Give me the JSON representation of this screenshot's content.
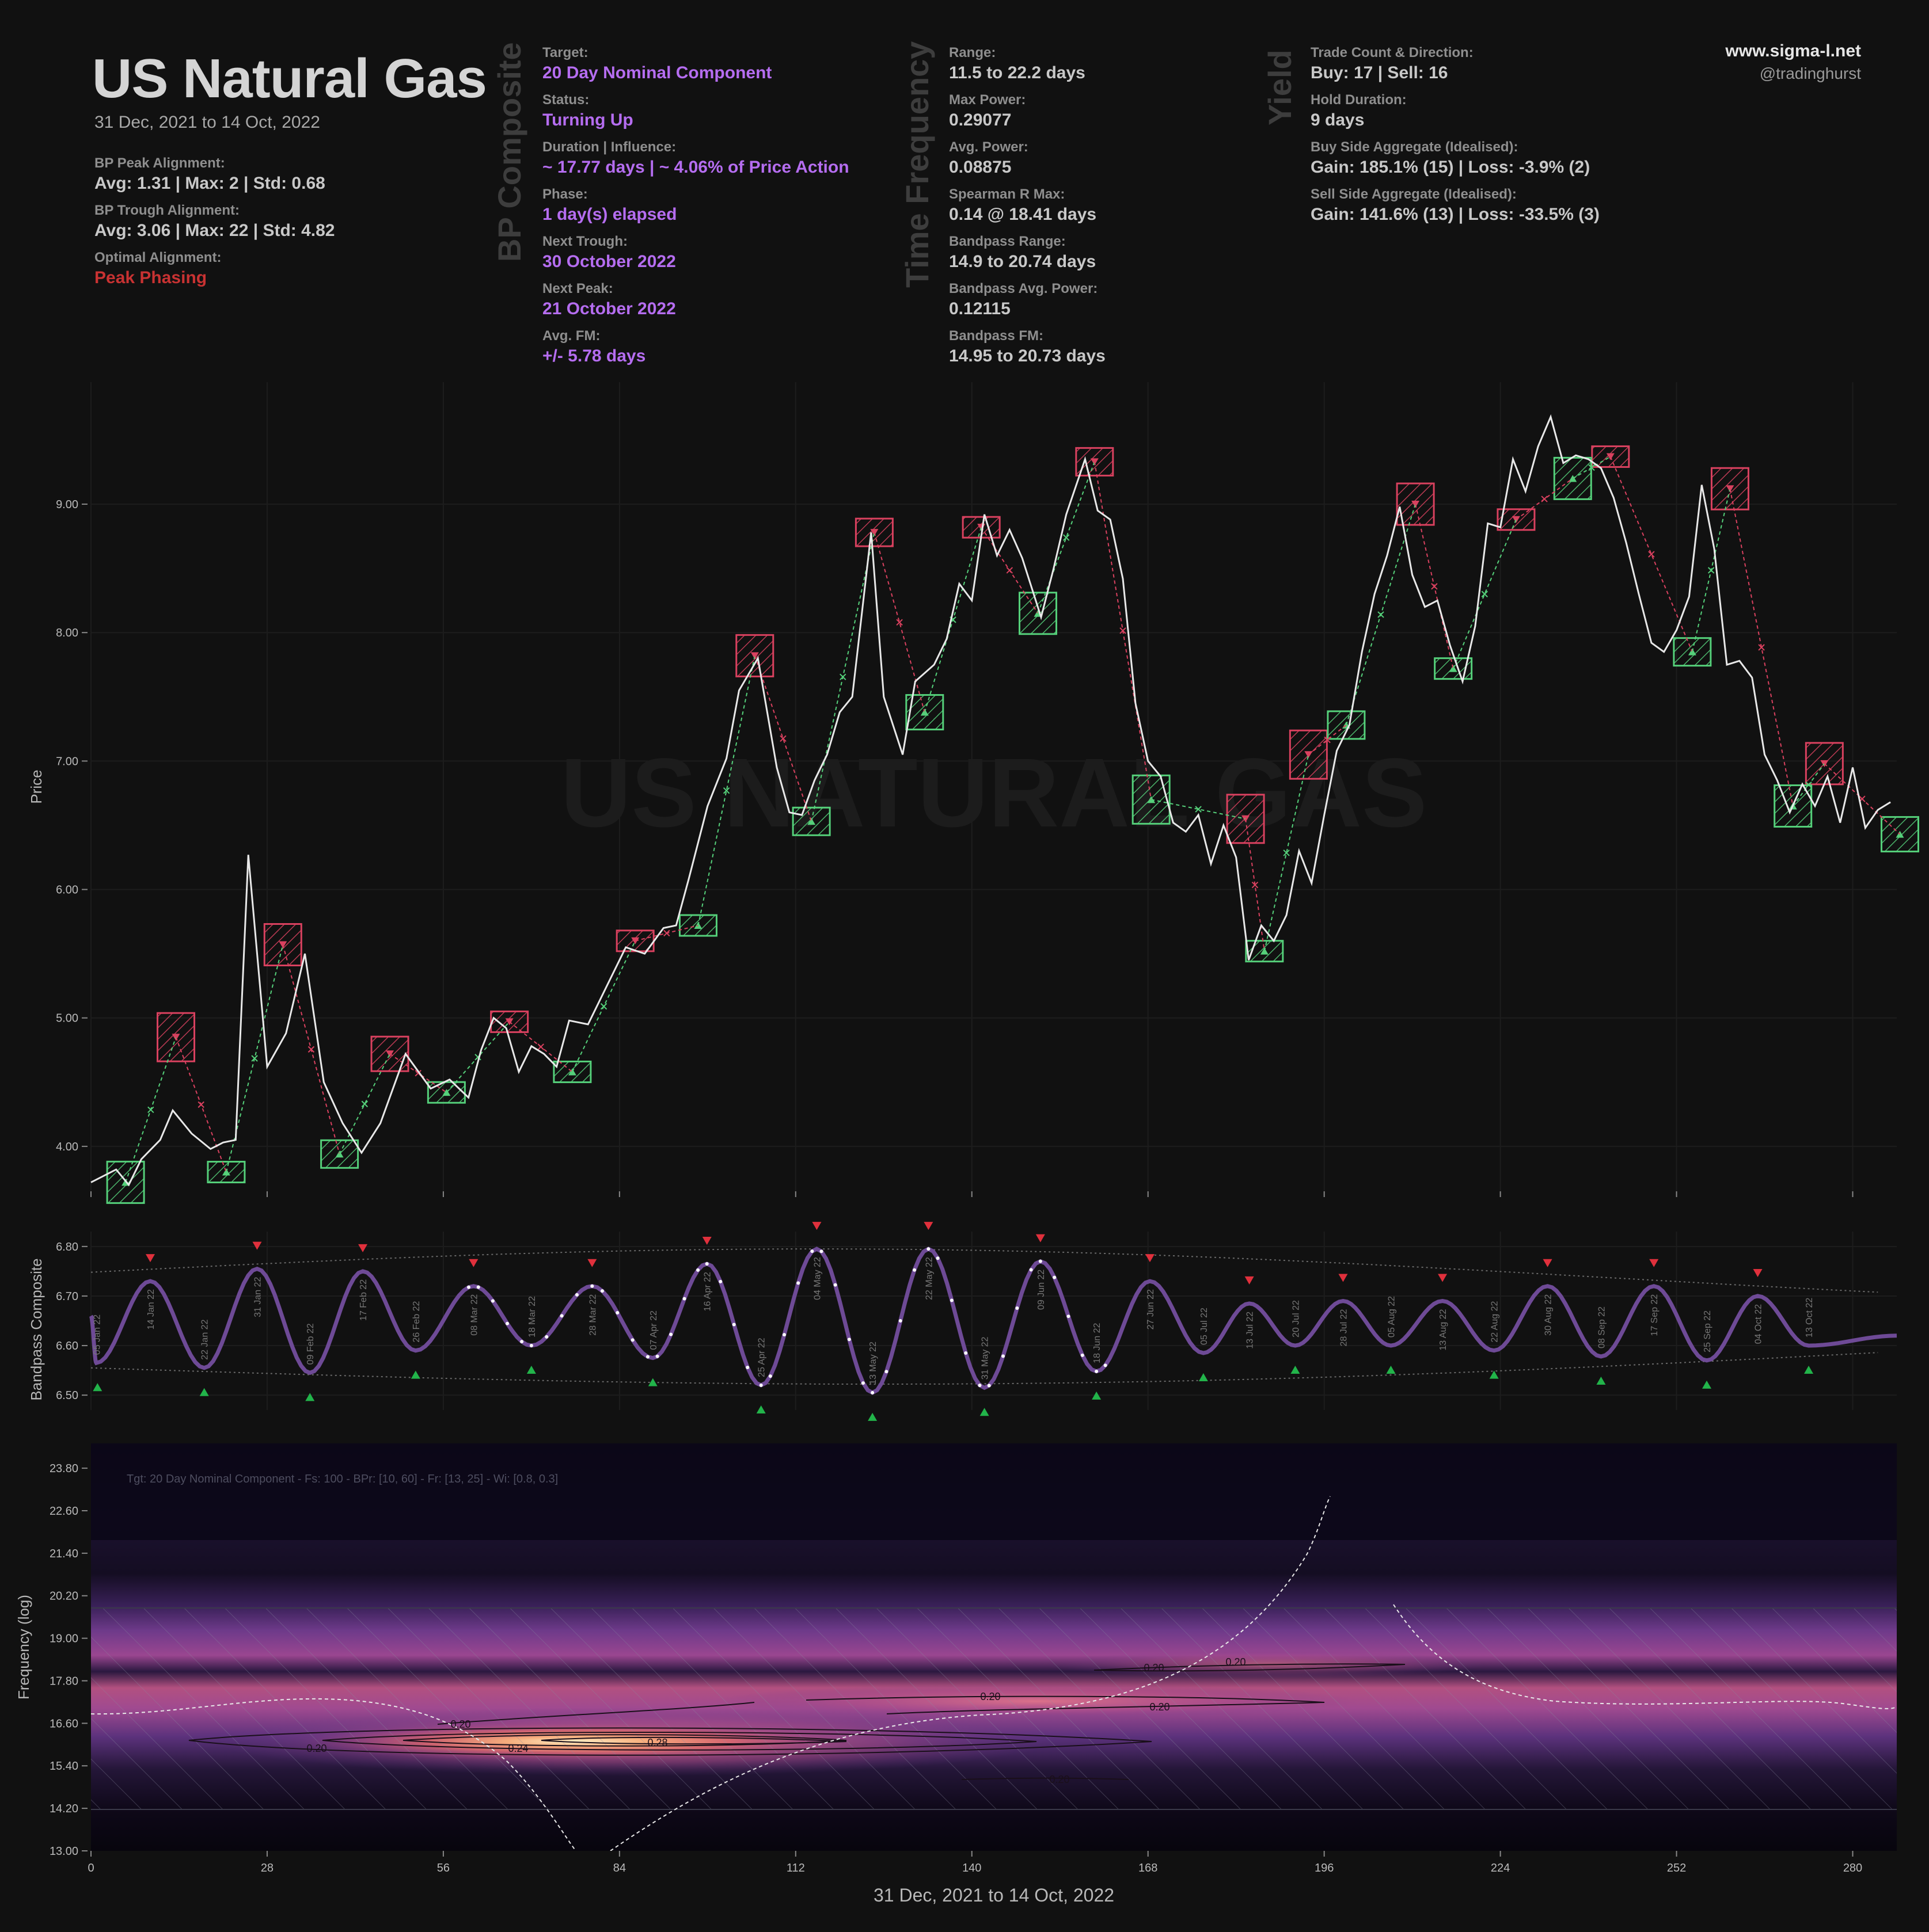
{
  "header": {
    "title": "US Natural Gas",
    "subtitle": "31 Dec, 2021 to 14 Oct, 2022",
    "site": "www.sigma-l.net",
    "handle": "@tradinghurst"
  },
  "alignment": {
    "peak_label": "BP Peak Alignment:",
    "peak_value": "Avg: 1.31 | Max: 2 | Std: 0.68",
    "trough_label": "BP Trough Alignment:",
    "trough_value": "Avg: 3.06 | Max: 22 | Std: 4.82",
    "optimal_label": "Optimal Alignment:",
    "optimal_value": "Peak Phasing"
  },
  "composite": {
    "heading": "BP Composite",
    "target_label": "Target:",
    "target_value": "20 Day Nominal Component",
    "status_label": "Status:",
    "status_value": "Turning Up",
    "duration_label": "Duration | Influence:",
    "duration_value": "~ 17.77 days | ~ 4.06% of Price Action",
    "phase_label": "Phase:",
    "phase_value": "1 day(s) elapsed",
    "next_trough_label": "Next Trough:",
    "next_trough_value": "30 October 2022",
    "next_peak_label": "Next Peak:",
    "next_peak_value": "21 October 2022",
    "avg_fm_label": "Avg. FM:",
    "avg_fm_value": "+/- 5.78 days"
  },
  "frequency": {
    "heading": "Time Frequency",
    "range_label": "Range:",
    "range_value": "11.5 to 22.2 days",
    "max_power_label": "Max Power:",
    "max_power_value": "0.29077",
    "avg_power_label": "Avg. Power:",
    "avg_power_value": "0.08875",
    "spearman_label": "Spearman R Max:",
    "spearman_value": "0.14 @ 18.41 days",
    "bp_range_label": "Bandpass Range:",
    "bp_range_value": "14.9 to 20.74 days",
    "bp_avg_label": "Bandpass Avg. Power:",
    "bp_avg_value": "0.12115",
    "bp_fm_label": "Bandpass FM:",
    "bp_fm_value": "14.95 to 20.73 days"
  },
  "yield": {
    "heading": "Yield",
    "trade_label": "Trade Count & Direction:",
    "trade_value": "Buy: 17 | Sell: 16",
    "hold_label": "Hold Duration:",
    "hold_value": "9 days",
    "buy_label": "Buy Side Aggregate (Idealised):",
    "buy_value": "Gain: 185.1% (15) | Loss: -3.9% (2)",
    "sell_label": "Sell Side Aggregate (Idealised):",
    "sell_value": "Gain: 141.6% (13) | Loss: -33.5% (3)"
  },
  "chart_data": [
    {
      "type": "line",
      "name": "price",
      "watermark": "US NATURAL GAS",
      "ylabel": "Price",
      "ylim": [
        3.65,
        9.95
      ],
      "xlim": [
        0,
        287
      ],
      "yticks": [
        "4.00",
        "5.00",
        "6.00",
        "7.00",
        "8.00",
        "9.00"
      ],
      "line_color": "#e8e8e8",
      "series": [
        {
          "x": [
            0,
            4,
            6,
            8,
            11,
            13,
            16,
            19,
            21,
            23,
            25,
            28,
            31,
            34,
            37,
            40,
            43,
            46,
            50,
            54,
            57,
            60,
            62,
            64,
            66,
            68,
            70,
            72,
            74,
            76,
            79,
            82,
            85,
            88,
            91,
            93,
            95,
            98,
            101,
            103,
            106,
            109,
            111,
            113,
            115,
            117,
            119,
            121,
            124,
            126,
            129,
            131,
            134,
            136,
            138,
            140,
            142,
            144,
            146,
            148,
            151,
            153,
            155,
            158,
            160,
            162,
            164,
            166,
            168,
            170,
            172,
            174,
            176,
            178,
            180,
            182,
            184,
            186,
            188,
            190,
            192,
            194,
            196,
            198,
            200,
            202,
            204,
            206,
            208,
            210,
            212,
            214,
            216,
            218,
            220,
            222,
            224,
            226,
            228,
            230,
            232,
            234,
            236,
            238,
            240,
            242,
            244,
            246,
            248,
            250,
            252,
            254,
            256,
            258,
            260,
            262,
            264,
            266,
            268,
            270,
            272,
            274,
            276,
            278,
            280,
            282,
            284,
            286
          ],
          "y": [
            3.72,
            3.82,
            3.7,
            3.9,
            4.05,
            4.28,
            4.1,
            3.98,
            4.03,
            4.05,
            6.27,
            4.62,
            4.88,
            5.5,
            4.5,
            4.18,
            3.95,
            4.18,
            4.72,
            4.45,
            4.52,
            4.38,
            4.75,
            5.0,
            4.92,
            4.58,
            4.78,
            4.72,
            4.62,
            4.98,
            4.95,
            5.25,
            5.55,
            5.5,
            5.7,
            5.72,
            6.08,
            6.65,
            7.02,
            7.55,
            7.8,
            6.95,
            6.6,
            6.58,
            6.85,
            7.05,
            7.38,
            7.5,
            8.78,
            7.5,
            7.05,
            7.62,
            7.75,
            7.95,
            8.38,
            8.25,
            8.92,
            8.6,
            8.8,
            8.58,
            8.12,
            8.5,
            8.92,
            9.35,
            8.95,
            8.88,
            8.42,
            7.45,
            7.0,
            6.88,
            6.52,
            6.45,
            6.58,
            6.2,
            6.5,
            6.25,
            5.45,
            5.72,
            5.6,
            5.8,
            6.3,
            6.05,
            6.58,
            7.08,
            7.28,
            7.85,
            8.3,
            8.6,
            8.98,
            8.45,
            8.2,
            8.25,
            7.9,
            7.62,
            8.05,
            8.85,
            8.82,
            9.35,
            9.1,
            9.45,
            9.68,
            9.32,
            9.38,
            9.35,
            9.28,
            9.05,
            8.7,
            8.3,
            7.92,
            7.85,
            8.02,
            8.28,
            9.15,
            8.65,
            7.75,
            7.78,
            7.65,
            7.05,
            6.85,
            6.6,
            6.82,
            6.65,
            6.88,
            6.52,
            6.95,
            6.48,
            6.62,
            6.68
          ]
        }
      ],
      "sell_zones": [
        [
          13.5,
          4.85
        ],
        [
          30.5,
          5.57
        ],
        [
          47.5,
          4.72
        ],
        [
          66.5,
          4.97
        ],
        [
          86.5,
          5.6
        ],
        [
          105.5,
          7.82
        ],
        [
          124.5,
          8.78
        ],
        [
          141.5,
          8.82
        ],
        [
          159.5,
          9.33
        ],
        [
          183.5,
          6.55
        ],
        [
          193.5,
          7.05
        ],
        [
          210.5,
          9.0
        ],
        [
          226.5,
          8.88
        ],
        [
          241.5,
          9.37
        ],
        [
          260.5,
          9.12
        ],
        [
          275.5,
          6.98
        ]
      ],
      "buy_zones": [
        [
          5.5,
          3.72
        ],
        [
          21.5,
          3.8
        ],
        [
          39.5,
          3.94
        ],
        [
          56.5,
          4.42
        ],
        [
          76.5,
          4.58
        ],
        [
          96.5,
          5.72
        ],
        [
          114.5,
          6.53
        ],
        [
          132.5,
          7.38
        ],
        [
          150.5,
          8.15
        ],
        [
          168.5,
          6.7
        ],
        [
          186.5,
          5.52
        ],
        [
          199.5,
          7.28
        ],
        [
          216.5,
          7.72
        ],
        [
          235.5,
          9.2
        ],
        [
          254.5,
          7.85
        ],
        [
          270.5,
          6.65
        ],
        [
          287.5,
          6.43
        ]
      ]
    },
    {
      "type": "line",
      "name": "bandpass",
      "ylabel": "Bandpass Composite",
      "ylim": [
        6.47,
        6.83
      ],
      "yticks": [
        "6.50",
        "6.60",
        "6.70",
        "6.80"
      ],
      "peak_dates": [
        "14 Jan 22",
        "31 Jan 22",
        "17 Feb 22",
        "08 Mar 22",
        "28 Mar 22",
        "16 Apr 22",
        "04 May 22",
        "22 May 22",
        "09 Jun 22",
        "27 Jun 22",
        "13 Jul 22",
        "28 Jul 22",
        "13 Aug 22",
        "30 Aug 22",
        "17 Sep 22",
        "04 Oct 22"
      ],
      "trough_dates": [
        "05 Jan 22",
        "22 Jan 22",
        "09 Feb 22",
        "26 Feb 22",
        "18 Mar 22",
        "07 Apr 22",
        "25 Apr 22",
        "13 May 22",
        "31 May 22",
        "18 Jun 22",
        "05 Jul 22",
        "20 Jul 22",
        "05 Aug 22",
        "22 Aug 22",
        "08 Sep 22",
        "25 Sep 22",
        "13 Oct 22"
      ]
    },
    {
      "type": "heatmap",
      "name": "time-frequency",
      "ylabel": "Frequency (log)",
      "ylim": [
        13.0,
        24.5
      ],
      "yticks": [
        "13.00",
        "14.20",
        "15.40",
        "16.60",
        "17.80",
        "19.00",
        "20.20",
        "21.40",
        "22.60",
        "23.80"
      ],
      "xticks": [
        "0",
        "28",
        "56",
        "84",
        "112",
        "140",
        "168",
        "196",
        "224",
        "252",
        "280"
      ],
      "xlabel": "31 Dec, 2021 to 14 Oct, 2022",
      "annotation": "Tgt: 20 Day Nominal Component - Fs: 100 - BPr: [10, 60] - Fr: [13, 25] - Wi: [0.8, 0.3]",
      "contour_labels": [
        "0.20",
        "0.24",
        "0.28",
        "0.20",
        "0.20",
        "0.20",
        "0.20",
        "0.20",
        "0.20"
      ]
    }
  ]
}
